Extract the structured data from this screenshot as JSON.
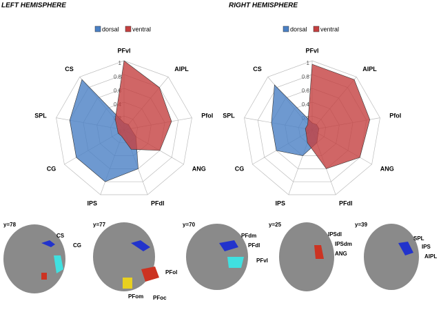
{
  "chart_data": [
    {
      "type": "radar",
      "title": "LEFT HEMISPHERE",
      "categories": [
        "PFvl",
        "AIPL",
        "Pfol",
        "ANG",
        "PFdl",
        "IPS",
        "CG",
        "SPL",
        "CS"
      ],
      "series": [
        {
          "name": "dorsal",
          "color": "#4a80c4",
          "values": [
            0.1,
            0.1,
            0.1,
            0.2,
            0.6,
            0.8,
            0.8,
            0.8,
            0.95
          ]
        },
        {
          "name": "ventral",
          "color": "#c44040",
          "values": [
            1,
            0.8,
            0.7,
            0.6,
            0.3,
            0.1,
            0.1,
            0.1,
            0.2
          ]
        }
      ],
      "ylim": [
        0,
        1
      ],
      "yticks": [
        0,
        0.2,
        0.4,
        0.6,
        0.8,
        1
      ]
    },
    {
      "type": "radar",
      "title": "RIGHT HEMISPHERE",
      "categories": [
        "PFvl",
        "AIPL",
        "Pfol",
        "ANG",
        "PFdl",
        "IPS",
        "CG",
        "SPL",
        "CS"
      ],
      "series": [
        {
          "name": "dorsal",
          "color": "#4a80c4",
          "values": [
            0.1,
            0.1,
            0.1,
            0.1,
            0.2,
            0.4,
            0.6,
            0.6,
            0.85
          ]
        },
        {
          "name": "ventral",
          "color": "#c44040",
          "values": [
            0.95,
            0.95,
            0.85,
            0.8,
            0.6,
            0.2,
            0.1,
            0.1,
            0.1
          ]
        }
      ],
      "ylim": [
        0,
        1
      ],
      "yticks": [
        0,
        0.2,
        0.4,
        0.6,
        0.8,
        1
      ]
    }
  ],
  "slices": [
    {
      "label": "y=78",
      "regions": [
        "CS",
        "CG"
      ]
    },
    {
      "label": "y=77",
      "regions": [
        "PFol",
        "PFom",
        "PFoc"
      ]
    },
    {
      "label": "y=70",
      "regions": [
        "PFdm",
        "PFdl",
        "PFvl"
      ]
    },
    {
      "label": "y=25",
      "regions": [
        "IPSdl",
        "IPSdm",
        "ANG"
      ]
    },
    {
      "label": "y=39",
      "regions": [
        "SPL",
        "IPS",
        "AIPL"
      ]
    }
  ]
}
